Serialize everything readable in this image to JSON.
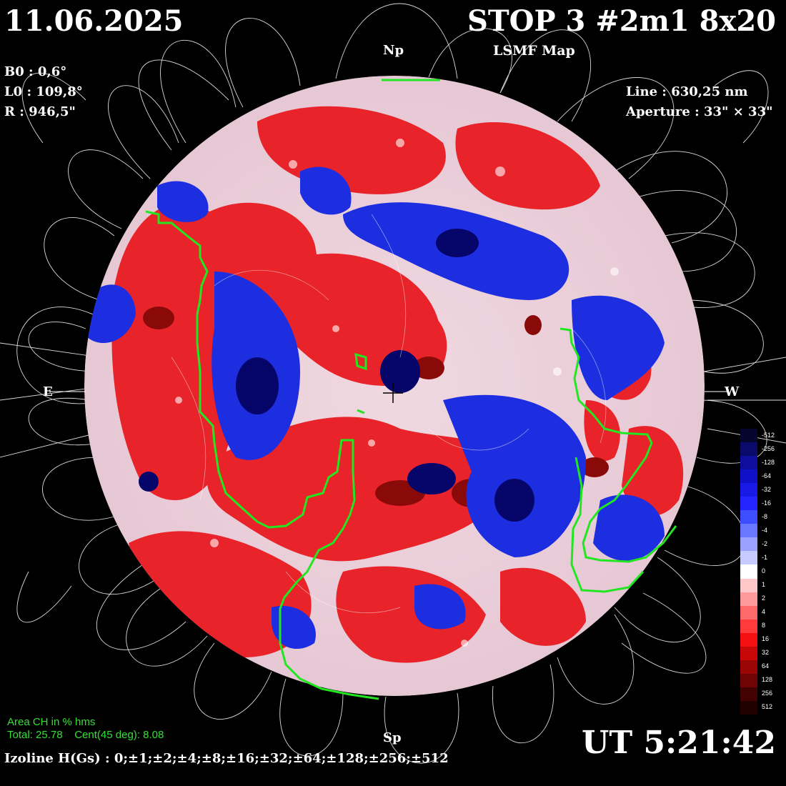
{
  "header": {
    "date": "11.06.2025",
    "instrument": "STOP 3 #2m1 8x20",
    "map_type": "LSMF  Map"
  },
  "params": {
    "b0": "B0 : 0,6°",
    "l0": "L0 : 109,8°",
    "r": "R  : 946,5\"",
    "line": "Line :  630,25 nm",
    "aperture": "Aperture : 33\" × 33\""
  },
  "axes": {
    "north": "Np",
    "south": "Sp",
    "east": "E",
    "west": "W"
  },
  "coronal_hole": {
    "title": "Area CH in % hms",
    "stats": "Total: 25.78    Cent(45 deg): 8.08"
  },
  "time": "UT 5:21:42",
  "izoline": "Izoline H(Gs) : 0;±1;±2;±4;±8;±16;±32;±64;±128;±256;±512",
  "colorbar": {
    "labels": [
      "-512",
      "-256",
      "-128",
      "-64",
      "-32",
      "-16",
      "-8",
      "-4",
      "-2",
      "-1",
      "0",
      "1",
      "2",
      "4",
      "8",
      "16",
      "32",
      "64",
      "128",
      "256",
      "512"
    ],
    "colors": [
      "#05052e",
      "#0a0a6a",
      "#0d0d9e",
      "#1010c8",
      "#1a1ae6",
      "#2525ff",
      "#3d4dff",
      "#6a78ff",
      "#9aa2ff",
      "#c6cbff",
      "#ffffff",
      "#ffc8c8",
      "#ff9a9a",
      "#ff6a6a",
      "#ff3a3a",
      "#f21010",
      "#c80808",
      "#9a0606",
      "#6e0404",
      "#420202",
      "#220000"
    ]
  },
  "colors": {
    "background": "#000000",
    "disk_positive": "#e8242a",
    "disk_negative": "#1c2ee0",
    "neutral": "#ffffff",
    "coronal_hole_contour": "#22e622",
    "field_lines": "#ffffff"
  }
}
